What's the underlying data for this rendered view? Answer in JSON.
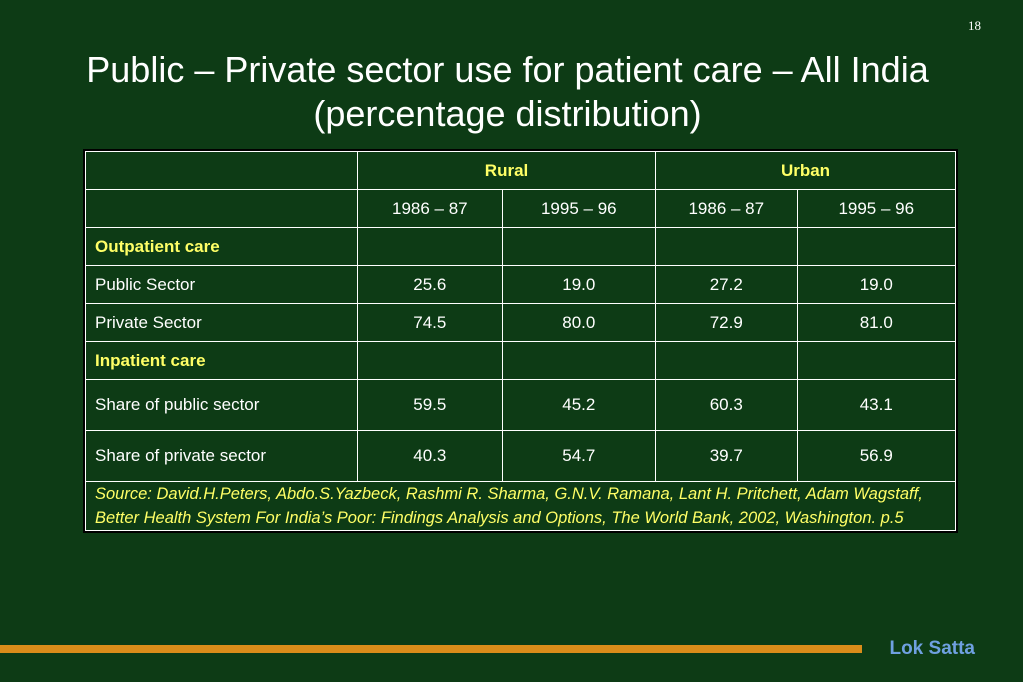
{
  "slide_number": "18",
  "title": "Public – Private sector use for patient care – All India (percentage distribution)",
  "table": {
    "group_headers": {
      "rural": "Rural",
      "urban": "Urban"
    },
    "periods": [
      "1986 – 87",
      "1995 – 96",
      "1986 – 87",
      "1995 – 96"
    ],
    "sections": [
      {
        "heading": "Outpatient care",
        "rows": [
          {
            "label": "Public Sector",
            "values": [
              "25.6",
              "19.0",
              "27.2",
              "19.0"
            ]
          },
          {
            "label": "Private Sector",
            "values": [
              "74.5",
              "80.0",
              "72.9",
              "81.0"
            ]
          }
        ]
      },
      {
        "heading": "Inpatient care",
        "rows": [
          {
            "label": "Share of public sector",
            "values": [
              "59.5",
              "45.2",
              "60.3",
              "43.1"
            ]
          },
          {
            "label": "Share of private sector",
            "values": [
              "40.3",
              "54.7",
              "39.7",
              "56.9"
            ]
          }
        ]
      }
    ],
    "source": "Source: David.H.Peters, Abdo.S.Yazbeck, Rashmi R. Sharma, G.N.V. Ramana, Lant H. Pritchett, Adam Wagstaff, Better Health System For India’s Poor: Findings Analysis and Options, The World Bank, 2002, Washington. p.5"
  },
  "footer": {
    "brand": "Lok Satta"
  },
  "colors": {
    "background": "#0d3b15",
    "heading_text": "#ffff66",
    "footer_bar": "#d98c1a",
    "brand_text": "#6fa0e0"
  }
}
